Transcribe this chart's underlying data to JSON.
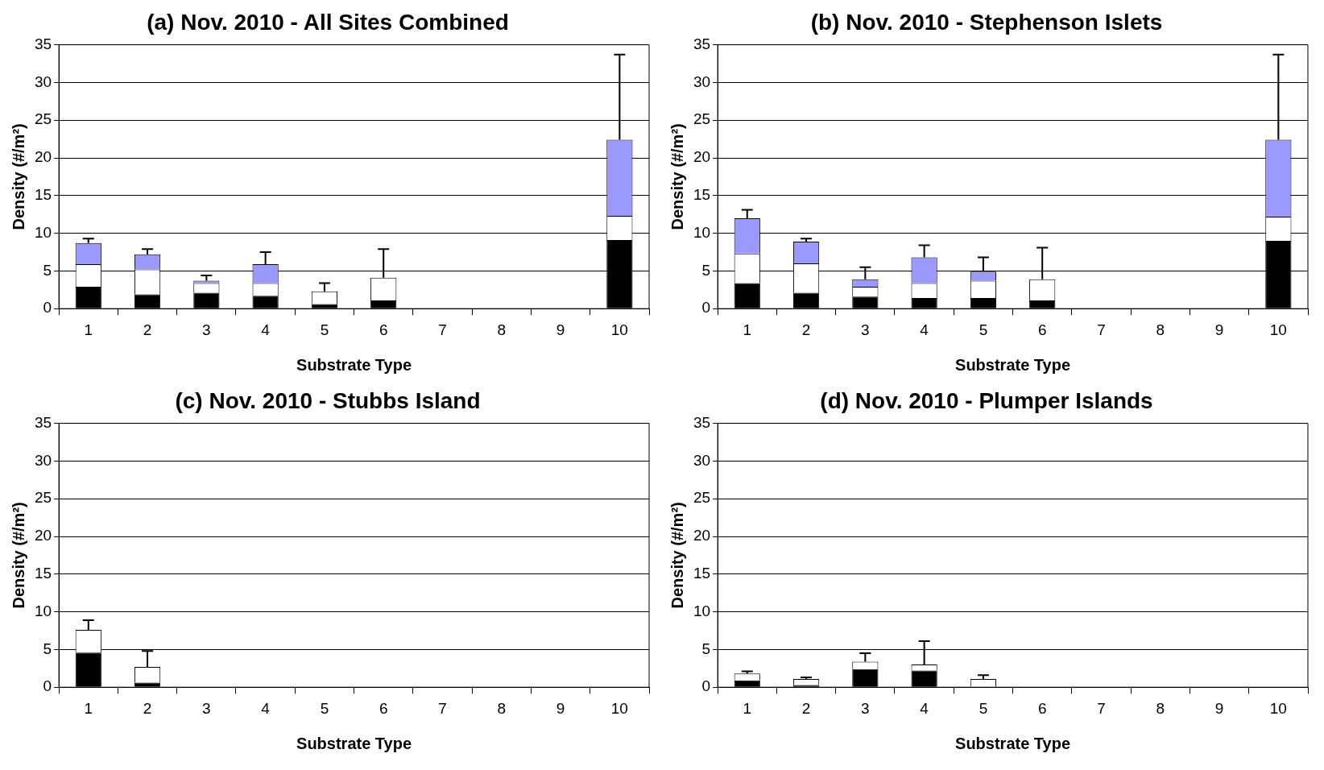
{
  "chart_data": [
    {
      "type": "bar",
      "title": "(a) Nov. 2010 - All Sites Combined",
      "xlabel": "Substrate Type",
      "ylabel": "Density (#/m²)",
      "categories": [
        "1",
        "2",
        "3",
        "4",
        "5",
        "6",
        "7",
        "8",
        "9",
        "10"
      ],
      "stacked": true,
      "grid": "y",
      "legend": false,
      "ylim": [
        0,
        35
      ],
      "yticks": [
        0,
        5,
        10,
        15,
        20,
        25,
        30,
        35
      ],
      "series": [
        {
          "color": "#000000",
          "values": [
            2.9,
            1.9,
            2.1,
            1.7,
            0.6,
            1.1,
            null,
            null,
            null,
            9.1
          ]
        },
        {
          "color": "#ffffff",
          "values": [
            3.0,
            3.3,
            1.3,
            1.7,
            1.7,
            3.0,
            null,
            null,
            null,
            3.2
          ]
        },
        {
          "color": "#9999ff",
          "values": [
            2.8,
            2.0,
            0.3,
            2.5,
            0,
            0,
            null,
            null,
            null,
            10.1
          ],
          "errors": [
            [
              8.7,
              9.3
            ],
            [
              7.2,
              7.9
            ],
            [
              3.7,
              4.4
            ],
            [
              5.9,
              7.5
            ],
            [
              2.3,
              3.4
            ],
            [
              4.1,
              7.9
            ],
            null,
            null,
            null,
            [
              22.4,
              33.7
            ]
          ]
        }
      ]
    },
    {
      "type": "bar",
      "title": "(b) Nov. 2010 - Stephenson Islets",
      "xlabel": "Substrate Type",
      "ylabel": "Density (#/m²)",
      "categories": [
        "1",
        "2",
        "3",
        "4",
        "5",
        "6",
        "7",
        "8",
        "9",
        "10"
      ],
      "stacked": true,
      "grid": "y",
      "legend": false,
      "ylim": [
        0,
        35
      ],
      "yticks": [
        0,
        5,
        10,
        15,
        20,
        25,
        30,
        35
      ],
      "series": [
        {
          "color": "#000000",
          "values": [
            3.4,
            2.1,
            1.6,
            1.4,
            1.4,
            1.1,
            null,
            null,
            null,
            9.0
          ]
        },
        {
          "color": "#ffffff",
          "values": [
            3.9,
            3.9,
            1.3,
            2.0,
            2.3,
            2.8,
            null,
            null,
            null,
            3.2
          ]
        },
        {
          "color": "#9999ff",
          "values": [
            4.7,
            2.9,
            1.0,
            3.4,
            1.2,
            0,
            null,
            null,
            null,
            10.2
          ],
          "errors": [
            [
              12.0,
              13.1
            ],
            [
              8.9,
              9.3
            ],
            [
              3.9,
              5.5
            ],
            [
              6.8,
              8.4
            ],
            [
              4.9,
              6.8
            ],
            [
              3.9,
              8.1
            ],
            null,
            null,
            null,
            [
              22.4,
              33.7
            ]
          ]
        }
      ]
    },
    {
      "type": "bar",
      "title": "(c) Nov. 2010 - Stubbs Island",
      "xlabel": "Substrate Type",
      "ylabel": "Density (#/m²)",
      "categories": [
        "1",
        "2",
        "3",
        "4",
        "5",
        "6",
        "7",
        "8",
        "9",
        "10"
      ],
      "stacked": true,
      "grid": "y",
      "legend": false,
      "ylim": [
        0,
        35
      ],
      "yticks": [
        0,
        5,
        10,
        15,
        20,
        25,
        30,
        35
      ],
      "series": [
        {
          "color": "#000000",
          "values": [
            4.6,
            0.6,
            null,
            null,
            null,
            null,
            null,
            null,
            null,
            null
          ]
        },
        {
          "color": "#ffffff",
          "values": [
            3.0,
            2.1,
            null,
            null,
            null,
            null,
            null,
            null,
            null,
            null
          ],
          "errors": [
            [
              7.6,
              8.9
            ],
            [
              2.7,
              4.8
            ],
            null,
            null,
            null,
            null,
            null,
            null,
            null,
            null
          ]
        }
      ]
    },
    {
      "type": "bar",
      "title": "(d) Nov. 2010 - Plumper Islands",
      "xlabel": "Substrate Type",
      "ylabel": "Density (#/m²)",
      "categories": [
        "1",
        "2",
        "3",
        "4",
        "5",
        "6",
        "7",
        "8",
        "9",
        "10"
      ],
      "stacked": true,
      "grid": "y",
      "legend": false,
      "ylim": [
        0,
        35
      ],
      "yticks": [
        0,
        5,
        10,
        15,
        20,
        25,
        30,
        35
      ],
      "series": [
        {
          "color": "#000000",
          "values": [
            0.9,
            0.3,
            2.4,
            2.2,
            0,
            null,
            null,
            null,
            null,
            null
          ]
        },
        {
          "color": "#ffffff",
          "values": [
            0.9,
            0.8,
            1.0,
            0.8,
            1.1,
            null,
            null,
            null,
            null,
            null
          ],
          "errors": [
            [
              1.8,
              2.1
            ],
            [
              1.1,
              1.3
            ],
            [
              3.4,
              4.5
            ],
            [
              3.0,
              6.1
            ],
            [
              1.1,
              1.6
            ],
            null,
            null,
            null,
            null,
            null
          ]
        }
      ]
    }
  ]
}
